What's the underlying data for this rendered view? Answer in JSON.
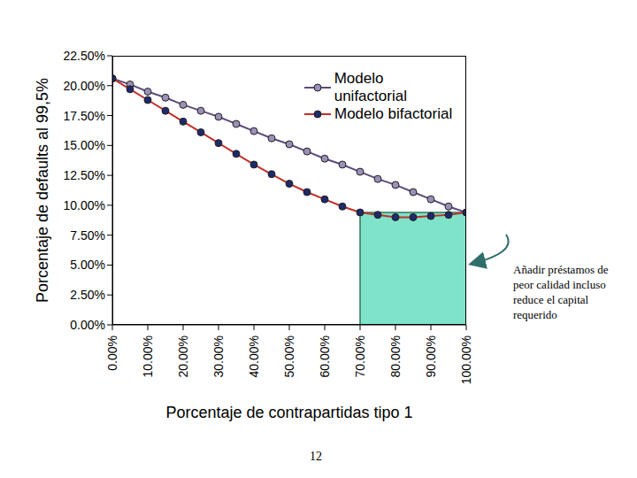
{
  "chart_data": {
    "type": "line",
    "x_label": "Porcentaje de contrapartidas tipo 1",
    "y_label": "Porcentaje de defaults al 99,5%",
    "x": [
      0,
      5,
      10,
      15,
      20,
      25,
      30,
      35,
      40,
      45,
      50,
      55,
      60,
      65,
      70,
      75,
      80,
      85,
      90,
      95,
      100
    ],
    "series": [
      {
        "name": "Modelo unifactorial",
        "color": "#5e4a7a",
        "values": [
          20.6,
          20.1,
          19.5,
          19.0,
          18.4,
          17.9,
          17.4,
          16.8,
          16.2,
          15.6,
          15.1,
          14.5,
          13.9,
          13.4,
          12.8,
          12.2,
          11.7,
          11.1,
          10.5,
          9.9,
          9.4
        ]
      },
      {
        "name": "Modelo bifactorial",
        "color": "#c0302a",
        "values": [
          20.6,
          19.7,
          18.8,
          17.9,
          17.0,
          16.1,
          15.2,
          14.3,
          13.4,
          12.6,
          11.8,
          11.1,
          10.5,
          9.9,
          9.4,
          9.2,
          9.0,
          9.0,
          9.1,
          9.2,
          9.4
        ]
      }
    ],
    "xlim": [
      0,
      100
    ],
    "xticks": [
      {
        "value": 0,
        "label": "0.00%"
      },
      {
        "value": 10,
        "label": "10.00%"
      },
      {
        "value": 20,
        "label": "20.00%"
      },
      {
        "value": 30,
        "label": "30.00%"
      },
      {
        "value": 40,
        "label": "40.00%"
      },
      {
        "value": 50,
        "label": "50.00%"
      },
      {
        "value": 60,
        "label": "60.00%"
      },
      {
        "value": 70,
        "label": "70.00%"
      },
      {
        "value": 80,
        "label": "80.00%"
      },
      {
        "value": 90,
        "label": "90.00%"
      },
      {
        "value": 100,
        "label": "100.00%"
      }
    ],
    "ylim": [
      0,
      22.5
    ],
    "yticks": [
      {
        "value": 0,
        "label": "0.00%"
      },
      {
        "value": 2.5,
        "label": "2.50%"
      },
      {
        "value": 5,
        "label": "5.00%"
      },
      {
        "value": 7.5,
        "label": "7.50%"
      },
      {
        "value": 10,
        "label": "10.00%"
      },
      {
        "value": 12.5,
        "label": "12.50%"
      },
      {
        "value": 15,
        "label": "15.00%"
      },
      {
        "value": 17.5,
        "label": "17.50%"
      },
      {
        "value": 20,
        "label": "20.00%"
      },
      {
        "value": 22.5,
        "label": "22.50%"
      }
    ],
    "grid": false,
    "legend": "upper right",
    "marker": "circle",
    "shaded_region": {
      "x": [
        70,
        100
      ],
      "y": [
        0,
        9.4
      ],
      "color": "#7fe3c9"
    },
    "annotation": "Añadir préstamos de peor calidad incluso reduce el capital requerido"
  },
  "page_number": "12"
}
